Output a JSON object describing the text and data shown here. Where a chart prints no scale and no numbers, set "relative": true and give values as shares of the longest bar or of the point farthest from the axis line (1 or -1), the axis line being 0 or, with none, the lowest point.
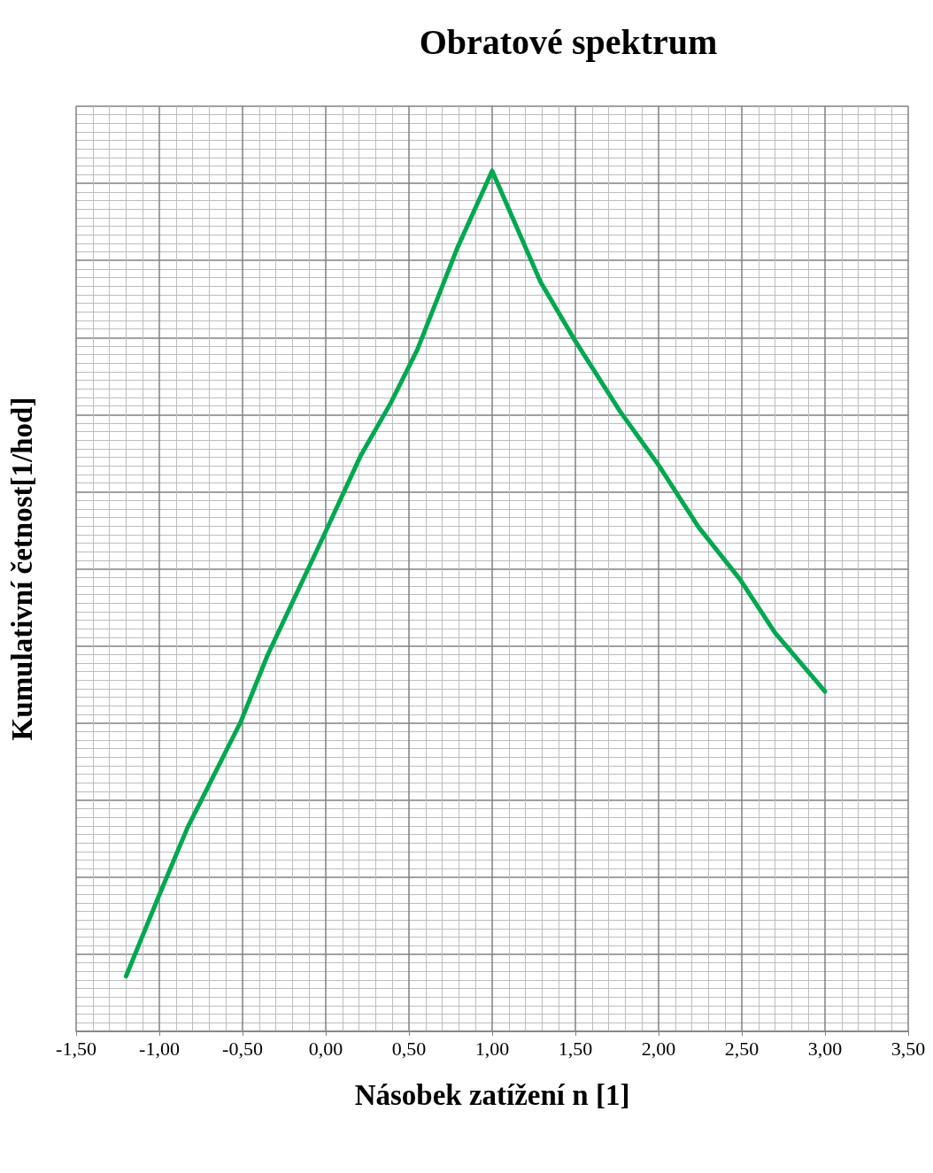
{
  "chart_data": {
    "type": "line",
    "title": "Obratové spektrum",
    "xlabel": "Násobek zatížení n [1]",
    "ylabel": "Kumulativní četnost[1/hod]",
    "relative": true,
    "grid": true,
    "marker": "none",
    "line_style": "solid",
    "xlim": [
      -1.5,
      3.5
    ],
    "xticks": [
      {
        "value": -1.5,
        "label": "-1,50"
      },
      {
        "value": -1,
        "label": "-1,00"
      },
      {
        "value": -0.5,
        "label": "-0,50"
      },
      {
        "value": 0,
        "label": "0,00"
      },
      {
        "value": 0.5,
        "label": "0,50"
      },
      {
        "value": 1,
        "label": "1,00"
      },
      {
        "value": 1.5,
        "label": "1,50"
      },
      {
        "value": 2,
        "label": "2,00"
      },
      {
        "value": 2.5,
        "label": "2,50"
      },
      {
        "value": 3,
        "label": "3,00"
      },
      {
        "value": 3.5,
        "label": "3,50"
      }
    ],
    "series": [
      {
        "color": "#00a84f",
        "x": [
          -1.2,
          -1.01,
          -0.83,
          -0.51,
          -0.35,
          0,
          0.21,
          0.39,
          0.55,
          0.79,
          1,
          1.29,
          1.5,
          1.77,
          2,
          2.24,
          2.49,
          2.7,
          3
        ],
        "values": [
          0.064,
          0.154,
          0.237,
          0.36,
          0.437,
          0.581,
          0.669,
          0.73,
          0.792,
          0.91,
          1,
          0.871,
          0.802,
          0.72,
          0.658,
          0.586,
          0.525,
          0.463,
          0.395
        ]
      }
    ]
  }
}
